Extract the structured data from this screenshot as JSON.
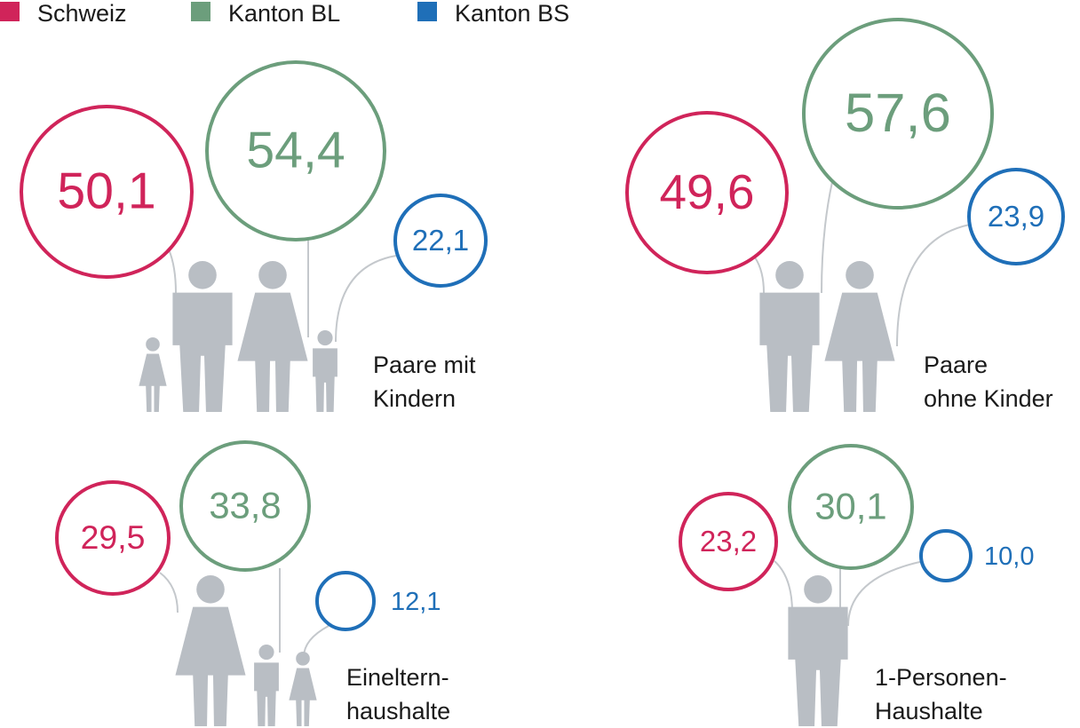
{
  "chart_data": {
    "type": "bubble",
    "unit": "",
    "colors": {
      "Schweiz": "#d0245a",
      "Kanton BL": "#6c9e7c",
      "Kanton BS": "#1f6fb8"
    },
    "legend": [
      {
        "name": "Schweiz",
        "color": "#d0245a"
      },
      {
        "name": "Kanton BL",
        "color": "#6c9e7c"
      },
      {
        "name": "Kanton BS",
        "color": "#1f6fb8"
      }
    ],
    "categories": [
      {
        "label_lines": [
          "Paare mit",
          "Kindern"
        ],
        "values": {
          "Schweiz": 50.1,
          "Kanton BL": 54.4,
          "Kanton BS": 22.1
        },
        "labels": {
          "Schweiz": "50,1",
          "Kanton BL": "54,4",
          "Kanton BS": "22,1"
        },
        "figures": [
          "girl",
          "man",
          "woman",
          "boy"
        ]
      },
      {
        "label_lines": [
          "Paare",
          "ohne Kinder"
        ],
        "values": {
          "Schweiz": 49.6,
          "Kanton BL": 57.6,
          "Kanton BS": 23.9
        },
        "labels": {
          "Schweiz": "49,6",
          "Kanton BL": "57,6",
          "Kanton BS": "23,9"
        },
        "figures": [
          "man",
          "woman"
        ]
      },
      {
        "label_lines": [
          "Eineltern-",
          "haushalte"
        ],
        "values": {
          "Schweiz": 29.5,
          "Kanton BL": 33.8,
          "Kanton BS": 12.1
        },
        "labels": {
          "Schweiz": "29,5",
          "Kanton BL": "33,8",
          "Kanton BS": "12,1"
        },
        "figures": [
          "woman",
          "boy",
          "girl"
        ]
      },
      {
        "label_lines": [
          "1-Personen-",
          "Haushalte"
        ],
        "values": {
          "Schweiz": 23.2,
          "Kanton BL": 30.1,
          "Kanton BS": 10.0
        },
        "labels": {
          "Schweiz": "23,2",
          "Kanton BL": "30,1",
          "Kanton BS": "10,0"
        },
        "figures": [
          "man"
        ]
      }
    ]
  }
}
